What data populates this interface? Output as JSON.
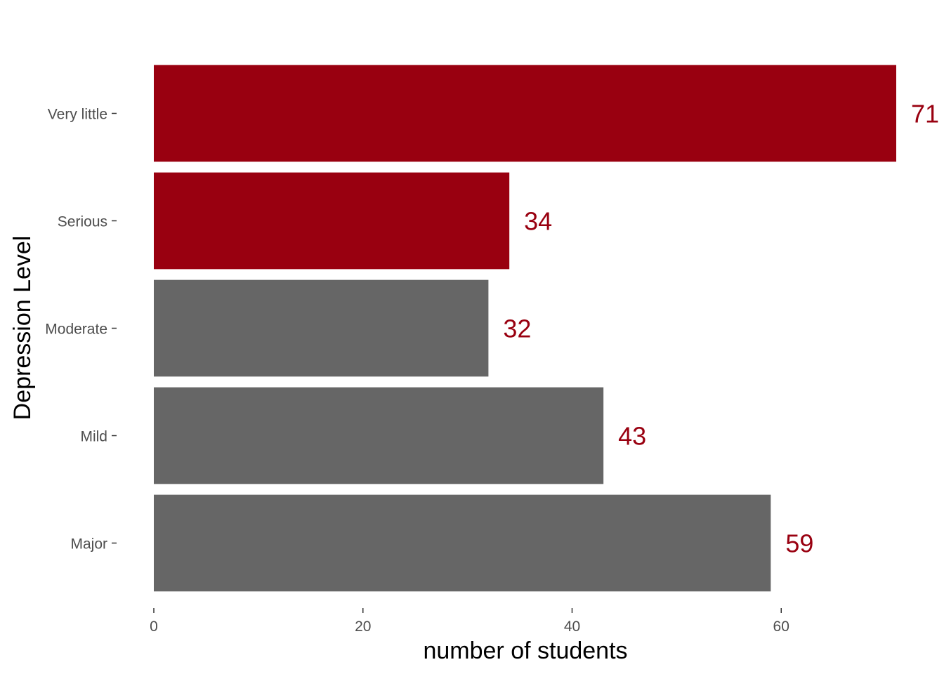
{
  "chart_data": {
    "type": "bar",
    "orientation": "horizontal",
    "categories": [
      "Very little",
      "Serious",
      "Moderate",
      "Mild",
      "Major"
    ],
    "values": [
      71,
      34,
      32,
      43,
      59
    ],
    "bar_colors": [
      "#990010",
      "#990010",
      "#666666",
      "#666666",
      "#666666"
    ],
    "value_labels": [
      "71",
      "34",
      "32",
      "43",
      "59"
    ],
    "value_label_color": "#990010",
    "title": "",
    "xlabel": "number of students",
    "ylabel": "Depression Level",
    "xlim": [
      0,
      71
    ],
    "xticks": [
      0,
      20,
      40,
      60
    ],
    "xtick_labels": [
      "0",
      "20",
      "40",
      "60"
    ],
    "grid": false,
    "legend": "none"
  }
}
